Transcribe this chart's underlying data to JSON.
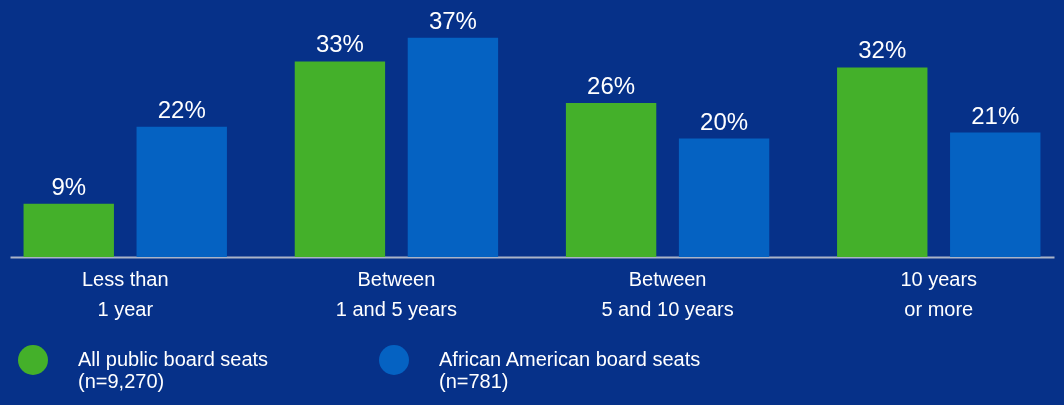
{
  "chart_data": {
    "type": "bar",
    "categories": [
      "Less than\n1 year",
      "Between\n1 and 5 years",
      "Between\n5 and 10 years",
      "10 years\nor more"
    ],
    "series": [
      {
        "name": "All public board seats\n(n=9,270)",
        "color": "#44b02a",
        "values": [
          9,
          33,
          26,
          32
        ],
        "value_labels": [
          "9%",
          "33%",
          "26%",
          "32%"
        ]
      },
      {
        "name": "African American board seats\n(n=781)",
        "color": "#0562c2",
        "values": [
          22,
          37,
          20,
          21
        ],
        "value_labels": [
          "22%",
          "37%",
          "20%",
          "21%"
        ]
      }
    ],
    "legend": "bottom",
    "grid": false,
    "tick_labels": "x"
  }
}
